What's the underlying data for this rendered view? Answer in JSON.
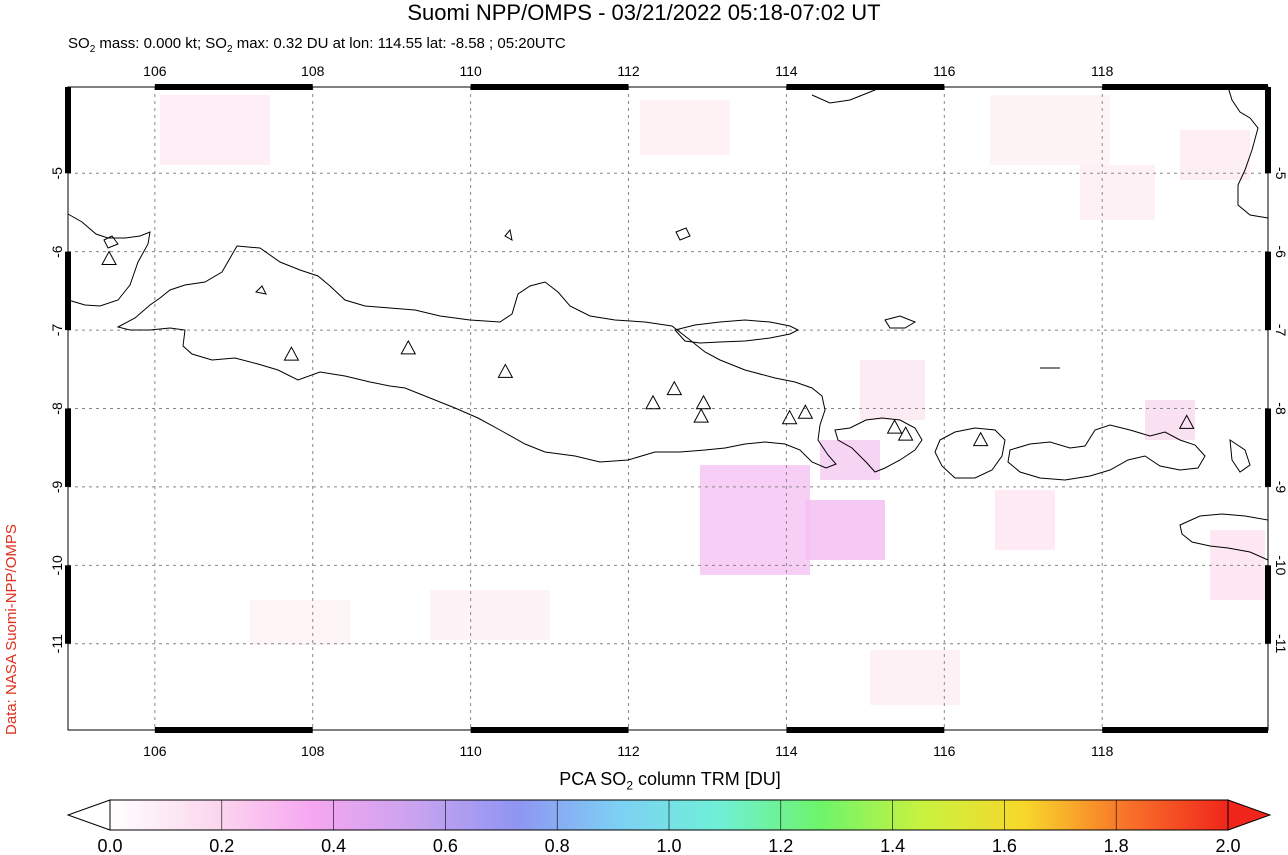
{
  "title": "Suomi NPP/OMPS - 03/21/2022 05:18-07:02 UT",
  "subtitle": {
    "mass_prefix": "SO",
    "mass_sub": "2",
    "mass_text": " mass: 0.000 kt; SO",
    "max_sub": "2",
    "max_text": " max: 0.32 DU at lon: 114.55 lat: -8.58 ; 05:20UTC"
  },
  "credit": "Data: NASA Suomi-NPP/OMPS",
  "colorbar": {
    "label_prefix": "PCA SO",
    "label_sub": "2",
    "label_suffix": " column TRM [DU]",
    "ticks": [
      "0.0",
      "0.2",
      "0.4",
      "0.6",
      "0.8",
      "1.0",
      "1.2",
      "1.4",
      "1.6",
      "1.8",
      "2.0"
    ],
    "colors": [
      "#ffffff",
      "#fbd9ee",
      "#f6a6f0",
      "#c9a3ef",
      "#8f95f2",
      "#7dd0f4",
      "#6ff0d6",
      "#6ef46a",
      "#c9f23f",
      "#f8d72b",
      "#f8732a",
      "#f0261c"
    ]
  },
  "map": {
    "lon_range": [
      104.9,
      120.1
    ],
    "lat_range": [
      -12.1,
      -3.9
    ],
    "lon_ticks": [
      "106",
      "108",
      "110",
      "112",
      "114",
      "116",
      "118"
    ],
    "lat_ticks": [
      "-5",
      "-6",
      "-7",
      "-8",
      "-9",
      "-10",
      "-11"
    ],
    "volcanoes": [
      [
        105.42,
        -6.1
      ],
      [
        107.73,
        -7.32
      ],
      [
        109.21,
        -7.24
      ],
      [
        110.44,
        -7.54
      ],
      [
        112.31,
        -7.94
      ],
      [
        112.58,
        -7.76
      ],
      [
        112.95,
        -7.94
      ],
      [
        112.92,
        -8.11
      ],
      [
        114.04,
        -8.13
      ],
      [
        114.24,
        -8.06
      ],
      [
        115.37,
        -8.25
      ],
      [
        115.51,
        -8.34
      ],
      [
        116.46,
        -8.41
      ],
      [
        119.07,
        -8.19
      ]
    ]
  }
}
